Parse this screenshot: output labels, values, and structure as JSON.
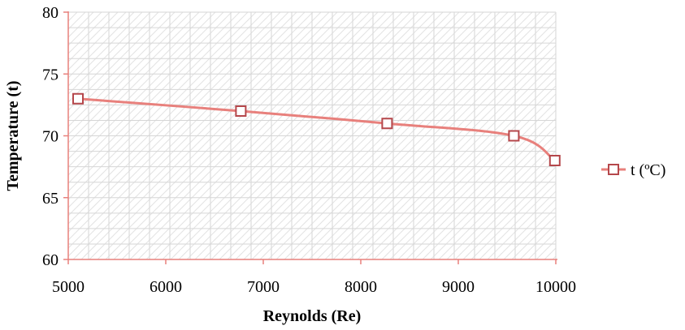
{
  "chart_data": {
    "type": "line",
    "xlabel": "Reynolds (Re)",
    "ylabel": "Temperature (t)",
    "xlim": [
      5000,
      10000
    ],
    "ylim": [
      60,
      80
    ],
    "x_ticks": [
      5000,
      6000,
      7000,
      8000,
      9000,
      10000
    ],
    "y_ticks": [
      60,
      65,
      70,
      75,
      80
    ],
    "x_tick_labels": [
      "5000",
      "6000",
      "7000",
      "8000",
      "9000",
      "10000"
    ],
    "y_tick_labels": [
      "60",
      "65",
      "70",
      "75",
      "80"
    ],
    "grid": true,
    "smooth": true,
    "legend_position": "right",
    "series": [
      {
        "name": "t (ºC)",
        "color": "#e8807c",
        "marker": "square",
        "marker_stroke": "#b5474b",
        "x": [
          5100,
          6770,
          8270,
          9570,
          9990
        ],
        "y": [
          73,
          72,
          71,
          70,
          68
        ]
      }
    ],
    "axis_color": "#e8807c",
    "grid_color": "#d6d6d6"
  }
}
